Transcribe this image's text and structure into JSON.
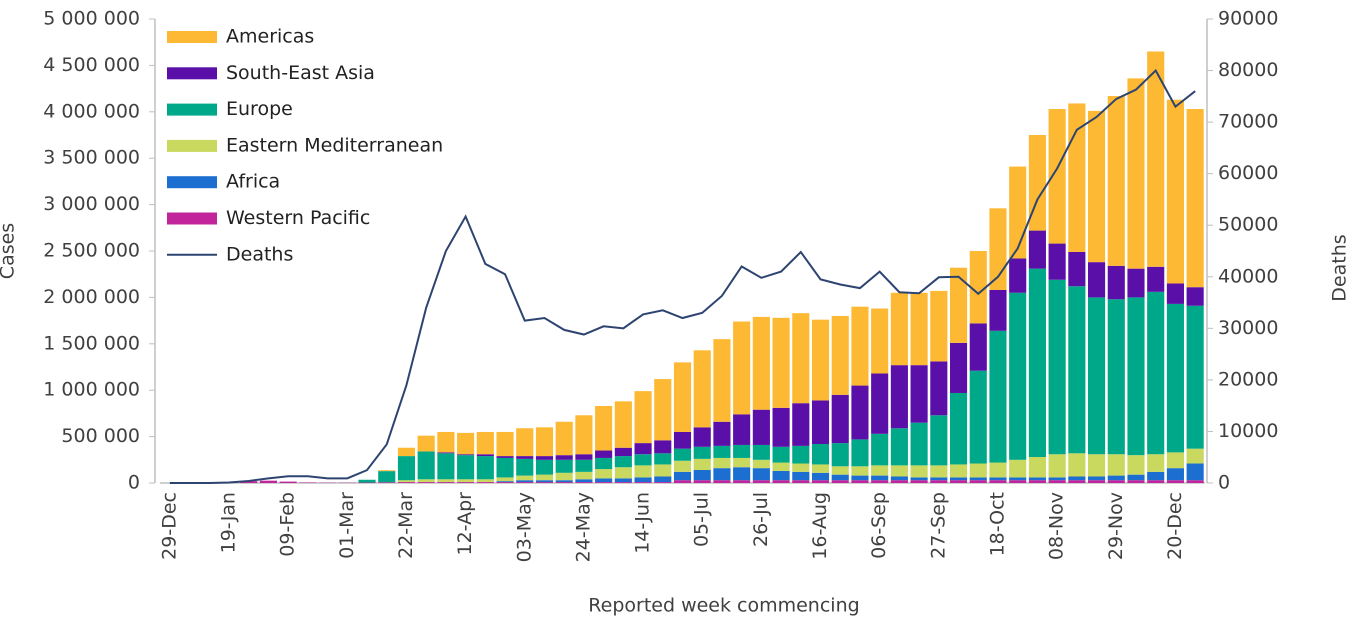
{
  "chart_data": {
    "type": "bar",
    "stacked": true,
    "legend": "upper left",
    "y_label": "Cases",
    "y2_label": "Deaths",
    "x_label": "Reported week commencing",
    "categories": [
      "29-Dec",
      null,
      null,
      "19-Jan",
      null,
      null,
      "09-Feb",
      null,
      null,
      "01-Mar",
      null,
      null,
      "22-Mar",
      null,
      null,
      "12-Apr",
      null,
      null,
      "03-May",
      null,
      null,
      "24-May",
      null,
      null,
      "14-Jun",
      null,
      null,
      "05-Jul",
      null,
      null,
      "26-Jul",
      null,
      null,
      "16-Aug",
      null,
      null,
      "06-Sep",
      null,
      null,
      "27-Sep",
      null,
      null,
      "18-Oct",
      null,
      null,
      "08-Nov",
      null,
      null,
      "29-Nov",
      null,
      null,
      "20-Dec",
      null
    ],
    "ylim": [
      0,
      5000000
    ],
    "yticks": [
      0,
      {
        "value": 500000,
        "label": "500 000"
      },
      {
        "value": 1000000,
        "label": "1 000 000"
      },
      {
        "value": 1500000,
        "label": "1 500 000"
      },
      {
        "value": 2000000,
        "label": "2 000 000"
      },
      {
        "value": 2500000,
        "label": "2 500 000"
      },
      {
        "value": 3000000,
        "label": "3 000 000"
      },
      {
        "value": 3500000,
        "label": "3 500 000"
      },
      {
        "value": 4000000,
        "label": "4 000 000"
      },
      {
        "value": 4500000,
        "label": "4 500 000"
      },
      {
        "value": 5000000,
        "label": "5 000 000"
      }
    ],
    "y2lim": [
      0,
      90000
    ],
    "y2ticks": [
      0,
      10000,
      20000,
      30000,
      40000,
      50000,
      60000,
      70000,
      80000,
      90000
    ],
    "series": [
      {
        "name": "Americas",
        "color": "#fdb933",
        "values": [
          0,
          0,
          0,
          0,
          0,
          0,
          0,
          0,
          0,
          0,
          0,
          10000,
          90000,
          170000,
          220000,
          230000,
          240000,
          260000,
          300000,
          310000,
          360000,
          420000,
          480000,
          500000,
          560000,
          660000,
          750000,
          830000,
          890000,
          1000000,
          1000000,
          970000,
          970000,
          870000,
          850000,
          850000,
          700000,
          780000,
          780000,
          760000,
          810000,
          780000,
          880000,
          990000,
          1030000,
          1450000,
          1600000,
          1630000,
          1830000,
          2050000,
          2320000,
          1980000,
          1920000
        ]
      },
      {
        "name": "South-East Asia",
        "color": "#5a0fa8",
        "values": [
          0,
          0,
          0,
          0,
          0,
          0,
          0,
          0,
          0,
          0,
          0,
          0,
          0,
          0,
          10000,
          10000,
          20000,
          20000,
          30000,
          40000,
          50000,
          60000,
          80000,
          90000,
          120000,
          140000,
          180000,
          210000,
          260000,
          330000,
          380000,
          420000,
          460000,
          470000,
          520000,
          580000,
          650000,
          680000,
          620000,
          580000,
          540000,
          510000,
          440000,
          370000,
          410000,
          390000,
          370000,
          380000,
          360000,
          310000,
          270000,
          220000,
          200000
        ]
      },
      {
        "name": "Europe",
        "color": "#00a88a",
        "values": [
          0,
          0,
          0,
          0,
          0,
          0,
          0,
          0,
          0,
          0,
          30000,
          120000,
          260000,
          300000,
          280000,
          260000,
          250000,
          210000,
          180000,
          160000,
          140000,
          130000,
          120000,
          120000,
          120000,
          120000,
          130000,
          130000,
          130000,
          140000,
          160000,
          170000,
          190000,
          220000,
          250000,
          290000,
          340000,
          400000,
          460000,
          540000,
          770000,
          1000000,
          1420000,
          1800000,
          2030000,
          1880000,
          1800000,
          1690000,
          1670000,
          1700000,
          1750000,
          1600000,
          1540000
        ]
      },
      {
        "name": "Eastern Mediterranean",
        "color": "#c9d85e",
        "values": [
          0,
          0,
          0,
          0,
          0,
          0,
          0,
          0,
          0,
          0,
          0,
          0,
          20000,
          30000,
          30000,
          30000,
          30000,
          40000,
          50000,
          60000,
          80000,
          80000,
          100000,
          120000,
          130000,
          130000,
          120000,
          120000,
          110000,
          100000,
          90000,
          90000,
          90000,
          90000,
          90000,
          100000,
          110000,
          120000,
          130000,
          130000,
          140000,
          150000,
          160000,
          190000,
          220000,
          250000,
          250000,
          240000,
          230000,
          210000,
          190000,
          170000,
          160000
        ]
      },
      {
        "name": "Africa",
        "color": "#1c6fd1",
        "values": [
          0,
          0,
          0,
          0,
          0,
          0,
          0,
          0,
          0,
          0,
          0,
          0,
          0,
          0,
          0,
          0,
          0,
          10000,
          20000,
          20000,
          20000,
          30000,
          40000,
          40000,
          50000,
          60000,
          90000,
          110000,
          130000,
          140000,
          130000,
          100000,
          90000,
          80000,
          60000,
          50000,
          50000,
          40000,
          30000,
          30000,
          30000,
          30000,
          30000,
          30000,
          30000,
          30000,
          40000,
          40000,
          50000,
          60000,
          90000,
          130000,
          180000
        ]
      },
      {
        "name": "Western Pacific",
        "color": "#c2249c",
        "values": [
          0,
          0,
          0,
          5000,
          20000,
          25000,
          15000,
          5000,
          3000,
          3000,
          5000,
          8000,
          10000,
          10000,
          10000,
          10000,
          10000,
          10000,
          10000,
          10000,
          10000,
          10000,
          10000,
          10000,
          10000,
          10000,
          30000,
          30000,
          30000,
          30000,
          30000,
          30000,
          30000,
          30000,
          30000,
          30000,
          30000,
          30000,
          30000,
          30000,
          30000,
          30000,
          30000,
          30000,
          30000,
          30000,
          30000,
          30000,
          30000,
          30000,
          30000,
          30000,
          30000
        ]
      },
      {
        "name": "Deaths",
        "type": "line",
        "axis": "y2",
        "color": "#2e4470",
        "values": [
          0,
          0,
          0,
          100,
          400,
          900,
          1300,
          1300,
          900,
          900,
          2500,
          7500,
          19000,
          34000,
          45000,
          51700,
          42500,
          40500,
          31500,
          32000,
          29700,
          28800,
          30400,
          30000,
          32700,
          33500,
          32000,
          33000,
          36300,
          42000,
          39800,
          41000,
          44800,
          39500,
          38500,
          37800,
          41000,
          37000,
          36800,
          39900,
          40000,
          36700,
          40000,
          45500,
          55000,
          61000,
          68500,
          71000,
          74500,
          76300,
          80000,
          73000,
          76000
        ]
      }
    ]
  }
}
